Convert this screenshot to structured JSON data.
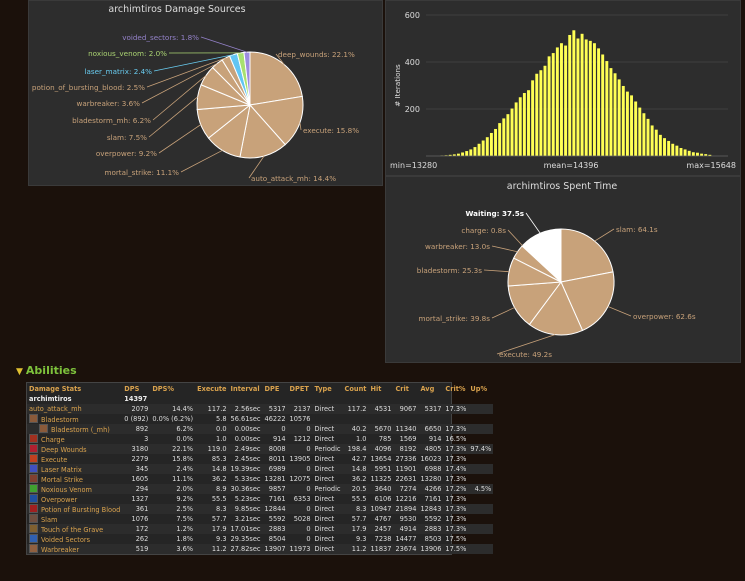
{
  "charts": {
    "damage": {
      "title": "archimtiros Damage Sources",
      "slices": [
        {
          "label": "deep_wounds",
          "text": "deep_wounds: 22.1%",
          "value": 22.1,
          "color": "#c8a27a",
          "lc": "#c8a27a"
        },
        {
          "label": "execute",
          "text": "execute: 15.8%",
          "value": 15.8,
          "color": "#c8a27a",
          "lc": "#c8a27a"
        },
        {
          "label": "auto_attack_mh",
          "text": "auto_attack_mh: 14.4%",
          "value": 14.4,
          "color": "#c8a27a",
          "lc": "#c8a27a"
        },
        {
          "label": "mortal_strike",
          "text": "mortal_strike: 11.1%",
          "value": 11.1,
          "color": "#c8a27a",
          "lc": "#c8a27a"
        },
        {
          "label": "overpower",
          "text": "overpower: 9.2%",
          "value": 9.2,
          "color": "#c8a27a",
          "lc": "#c8a27a"
        },
        {
          "label": "slam",
          "text": "slam: 7.5%",
          "value": 7.5,
          "color": "#c8a27a",
          "lc": "#c8a27a"
        },
        {
          "label": "bladestorm_mh",
          "text": "bladestorm_mh: 6.2%",
          "value": 6.2,
          "color": "#c8a27a",
          "lc": "#c8a27a"
        },
        {
          "label": "warbreaker",
          "text": "warbreaker: 3.6%",
          "value": 3.6,
          "color": "#c8a27a",
          "lc": "#c8a27a"
        },
        {
          "label": "potion_of_bursting_blood",
          "text": "potion_of_bursting_blood: 2.5%",
          "value": 2.5,
          "color": "#c8a27a",
          "lc": "#c8a27a"
        },
        {
          "label": "laser_matrix",
          "text": "laser_matrix: 2.4%",
          "value": 2.4,
          "color": "#62c5f2",
          "lc": "#69ccf0"
        },
        {
          "label": "noxious_venom",
          "text": "noxious_venom: 2.0%",
          "value": 2.0,
          "color": "#a8e070",
          "lc": "#abd473"
        },
        {
          "label": "voided_sectors",
          "text": "voided_sectors: 1.8%",
          "value": 1.8,
          "color": "#9c8ce0",
          "lc": "#9482c9"
        }
      ]
    },
    "histogram": {
      "y_label": "# Iterations",
      "y_ticks": [
        "600",
        "400",
        "200"
      ],
      "x_labels": {
        "min": "min=13280",
        "mean": "mean=14396",
        "max": "max=15648"
      },
      "bar_color": "#ffff55",
      "values": [
        2,
        3,
        5,
        7,
        10,
        15,
        21,
        28,
        38,
        52,
        66,
        80,
        98,
        115,
        140,
        160,
        178,
        202,
        228,
        250,
        268,
        280,
        322,
        350,
        365,
        384,
        424,
        438,
        462,
        480,
        470,
        515,
        535,
        500,
        520,
        496,
        490,
        480,
        458,
        432,
        404,
        374,
        352,
        326,
        298,
        274,
        258,
        232,
        206,
        182,
        158,
        130,
        112,
        90,
        76,
        64,
        52,
        44,
        34,
        28,
        22,
        16,
        14,
        10,
        8,
        5
      ]
    },
    "spent": {
      "title": "archimtiros Spent Time",
      "slices": [
        {
          "label": "Waiting",
          "text": "Waiting: 37.5s",
          "value": 37.5,
          "color": "#ffffff",
          "lc": "#ffffff",
          "bold": true
        },
        {
          "label": "slam",
          "text": "slam: 64.1s",
          "value": 64.1,
          "color": "#c8a27a",
          "lc": "#c8a27a"
        },
        {
          "label": "overpower",
          "text": "overpower: 62.6s",
          "value": 62.6,
          "color": "#c8a27a",
          "lc": "#c8a27a"
        },
        {
          "label": "execute",
          "text": "execute: 49.2s",
          "value": 49.2,
          "color": "#c8a27a",
          "lc": "#c8a27a"
        },
        {
          "label": "mortal_strike",
          "text": "mortal_strike: 39.8s",
          "value": 39.8,
          "color": "#c8a27a",
          "lc": "#c8a27a"
        },
        {
          "label": "bladestorm",
          "text": "bladestorm: 25.3s",
          "value": 25.3,
          "color": "#c8a27a",
          "lc": "#c8a27a"
        },
        {
          "label": "warbreaker",
          "text": "warbreaker: 13.0s",
          "value": 13.0,
          "color": "#c8a27a",
          "lc": "#c8a27a"
        },
        {
          "label": "charge",
          "text": "charge: 0.8s",
          "value": 0.8,
          "color": "#c8a27a",
          "lc": "#c8a27a"
        }
      ]
    }
  },
  "chart_data": [
    {
      "type": "pie",
      "title": "archimtiros Damage Sources",
      "labels": [
        "deep_wounds",
        "execute",
        "auto_attack_mh",
        "mortal_strike",
        "overpower",
        "slam",
        "bladestorm_mh",
        "warbreaker",
        "potion_of_bursting_blood",
        "laser_matrix",
        "noxious_venom",
        "voided_sectors"
      ],
      "values": [
        22.1,
        15.8,
        14.4,
        11.1,
        9.2,
        7.5,
        6.2,
        3.6,
        2.5,
        2.4,
        2.0,
        1.8
      ],
      "unit": "%"
    },
    {
      "type": "bar",
      "ylabel": "# Iterations",
      "x_min": 13280,
      "x_mean": 14396,
      "x_max": 15648,
      "ylim": [
        0,
        600
      ],
      "yticks": [
        200,
        400,
        600
      ],
      "grid": true
    },
    {
      "type": "pie",
      "title": "archimtiros Spent Time",
      "labels": [
        "Waiting",
        "slam",
        "overpower",
        "execute",
        "mortal_strike",
        "bladestorm",
        "warbreaker",
        "charge"
      ],
      "values": [
        37.5,
        64.1,
        62.6,
        49.2,
        39.8,
        25.3,
        13.0,
        0.8
      ],
      "unit": "s"
    },
    {
      "type": "table",
      "title": "Damage Stats"
    }
  ],
  "abilities": {
    "heading": "Abilities",
    "columns": [
      "Damage Stats",
      "DPS",
      "DPS%",
      "Execute",
      "Interval",
      "DPE",
      "DPET",
      "Type",
      "Count",
      "Hit",
      "Crit",
      "Avg",
      "Crit%",
      "Up%"
    ],
    "player": {
      "name": "archimtiros",
      "dps": "14397"
    },
    "rows": [
      {
        "icon": "",
        "indent": 0,
        "cells": [
          "auto_attack_mh",
          "2079",
          "14.4%",
          "117.2",
          "2.56sec",
          "5317",
          "2137",
          "Direct",
          "117.2",
          "4531",
          "9067",
          "5317",
          "17.3%",
          ""
        ]
      },
      {
        "icon": "#8a5a3a",
        "indent": 0,
        "cells": [
          "Bladestorm",
          "0 (892)",
          "0.0% (6.2%)",
          "5.8",
          "56.61sec",
          "46222",
          "10576",
          "",
          "",
          "",
          "",
          "",
          "",
          ""
        ]
      },
      {
        "icon": "#8a5a3a",
        "indent": 1,
        "cells": [
          "Bladestorm (_mh)",
          "892",
          "6.2%",
          "0.0",
          "0.00sec",
          "0",
          "0",
          "Direct",
          "40.2",
          "5670",
          "11340",
          "6650",
          "17.3%",
          ""
        ]
      },
      {
        "icon": "#a03020",
        "indent": 0,
        "cells": [
          "Charge",
          "3",
          "0.0%",
          "1.0",
          "0.00sec",
          "914",
          "1212",
          "Direct",
          "1.0",
          "785",
          "1569",
          "914",
          "16.5%",
          ""
        ]
      },
      {
        "icon": "#b02030",
        "indent": 0,
        "cells": [
          "Deep Wounds",
          "3180",
          "22.1%",
          "119.0",
          "2.49sec",
          "8008",
          "0",
          "Periodic",
          "198.4",
          "4096",
          "8192",
          "4805",
          "17.3%",
          "97.4%"
        ]
      },
      {
        "icon": "#c04020",
        "indent": 0,
        "cells": [
          "Execute",
          "2279",
          "15.8%",
          "85.3",
          "2.45sec",
          "8011",
          "13905",
          "Direct",
          "42.7",
          "13654",
          "27336",
          "16023",
          "17.3%",
          ""
        ]
      },
      {
        "icon": "#4050c0",
        "indent": 0,
        "cells": [
          "Laser Matrix",
          "345",
          "2.4%",
          "14.8",
          "19.39sec",
          "6989",
          "0",
          "Direct",
          "14.8",
          "5951",
          "11901",
          "6988",
          "17.4%",
          ""
        ]
      },
      {
        "icon": "#804030",
        "indent": 0,
        "cells": [
          "Mortal Strike",
          "1605",
          "11.1%",
          "36.2",
          "5.33sec",
          "13281",
          "12075",
          "Direct",
          "36.2",
          "11325",
          "22631",
          "13280",
          "17.3%",
          ""
        ]
      },
      {
        "icon": "#40a030",
        "indent": 0,
        "cells": [
          "Noxious Venom",
          "294",
          "2.0%",
          "8.9",
          "30.36sec",
          "9857",
          "0",
          "Periodic",
          "20.5",
          "3640",
          "7274",
          "4266",
          "17.2%",
          "4.5%"
        ]
      },
      {
        "icon": "#2050a0",
        "indent": 0,
        "cells": [
          "Overpower",
          "1327",
          "9.2%",
          "55.5",
          "5.23sec",
          "7161",
          "6353",
          "Direct",
          "55.5",
          "6106",
          "12216",
          "7161",
          "17.3%",
          ""
        ]
      },
      {
        "icon": "#a02020",
        "indent": 0,
        "cells": [
          "Potion of Bursting Blood",
          "361",
          "2.5%",
          "8.3",
          "9.85sec",
          "12844",
          "0",
          "Direct",
          "8.3",
          "10947",
          "21894",
          "12843",
          "17.3%",
          ""
        ]
      },
      {
        "icon": "#705040",
        "indent": 0,
        "cells": [
          "Slam",
          "1076",
          "7.5%",
          "57.7",
          "3.21sec",
          "5592",
          "5028",
          "Direct",
          "57.7",
          "4767",
          "9530",
          "5592",
          "17.3%",
          ""
        ]
      },
      {
        "icon": "#806030",
        "indent": 0,
        "cells": [
          "Touch of the Grave",
          "172",
          "1.2%",
          "17.9",
          "17.01sec",
          "2883",
          "0",
          "Direct",
          "17.9",
          "2457",
          "4914",
          "2883",
          "17.3%",
          ""
        ]
      },
      {
        "icon": "#3060b0",
        "indent": 0,
        "cells": [
          "Voided Sectors",
          "262",
          "1.8%",
          "9.3",
          "29.35sec",
          "8504",
          "0",
          "Direct",
          "9.3",
          "7238",
          "14477",
          "8503",
          "17.5%",
          ""
        ]
      },
      {
        "icon": "#906040",
        "indent": 0,
        "cells": [
          "Warbreaker",
          "519",
          "3.6%",
          "11.2",
          "27.82sec",
          "13907",
          "11973",
          "Direct",
          "11.2",
          "11837",
          "23674",
          "13906",
          "17.5%",
          ""
        ]
      }
    ]
  }
}
